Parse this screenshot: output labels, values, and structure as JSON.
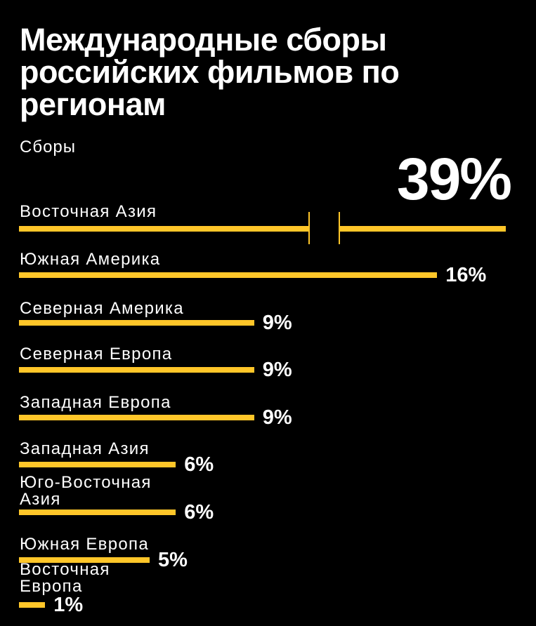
{
  "title": "Международные сборы российских фильмов по регионам",
  "subtitle": "Сборы",
  "colors": {
    "bar": "#FFC629",
    "background": "#000000",
    "text": "#FFFFFF"
  },
  "chart_data": {
    "type": "bar",
    "orientation": "horizontal",
    "title": "Международные сборы российских фильмов по регионам",
    "xlabel": "Сборы",
    "unit": "%",
    "axis_break": "first bar (39%) is shown truncated with a break",
    "categories": [
      "Восточная Азия",
      "Южная Америка",
      "Северная Америка",
      "Северная Европа",
      "Западная Европа",
      "Западная Азия",
      "Юго-Восточная Азия",
      "Южная Европа",
      "Восточная Европа"
    ],
    "values": [
      39,
      16,
      9,
      9,
      9,
      6,
      6,
      5,
      1
    ],
    "labels": [
      "39%",
      "16%",
      "9%",
      "9%",
      "9%",
      "6%",
      "6%",
      "5%",
      "1%"
    ]
  }
}
